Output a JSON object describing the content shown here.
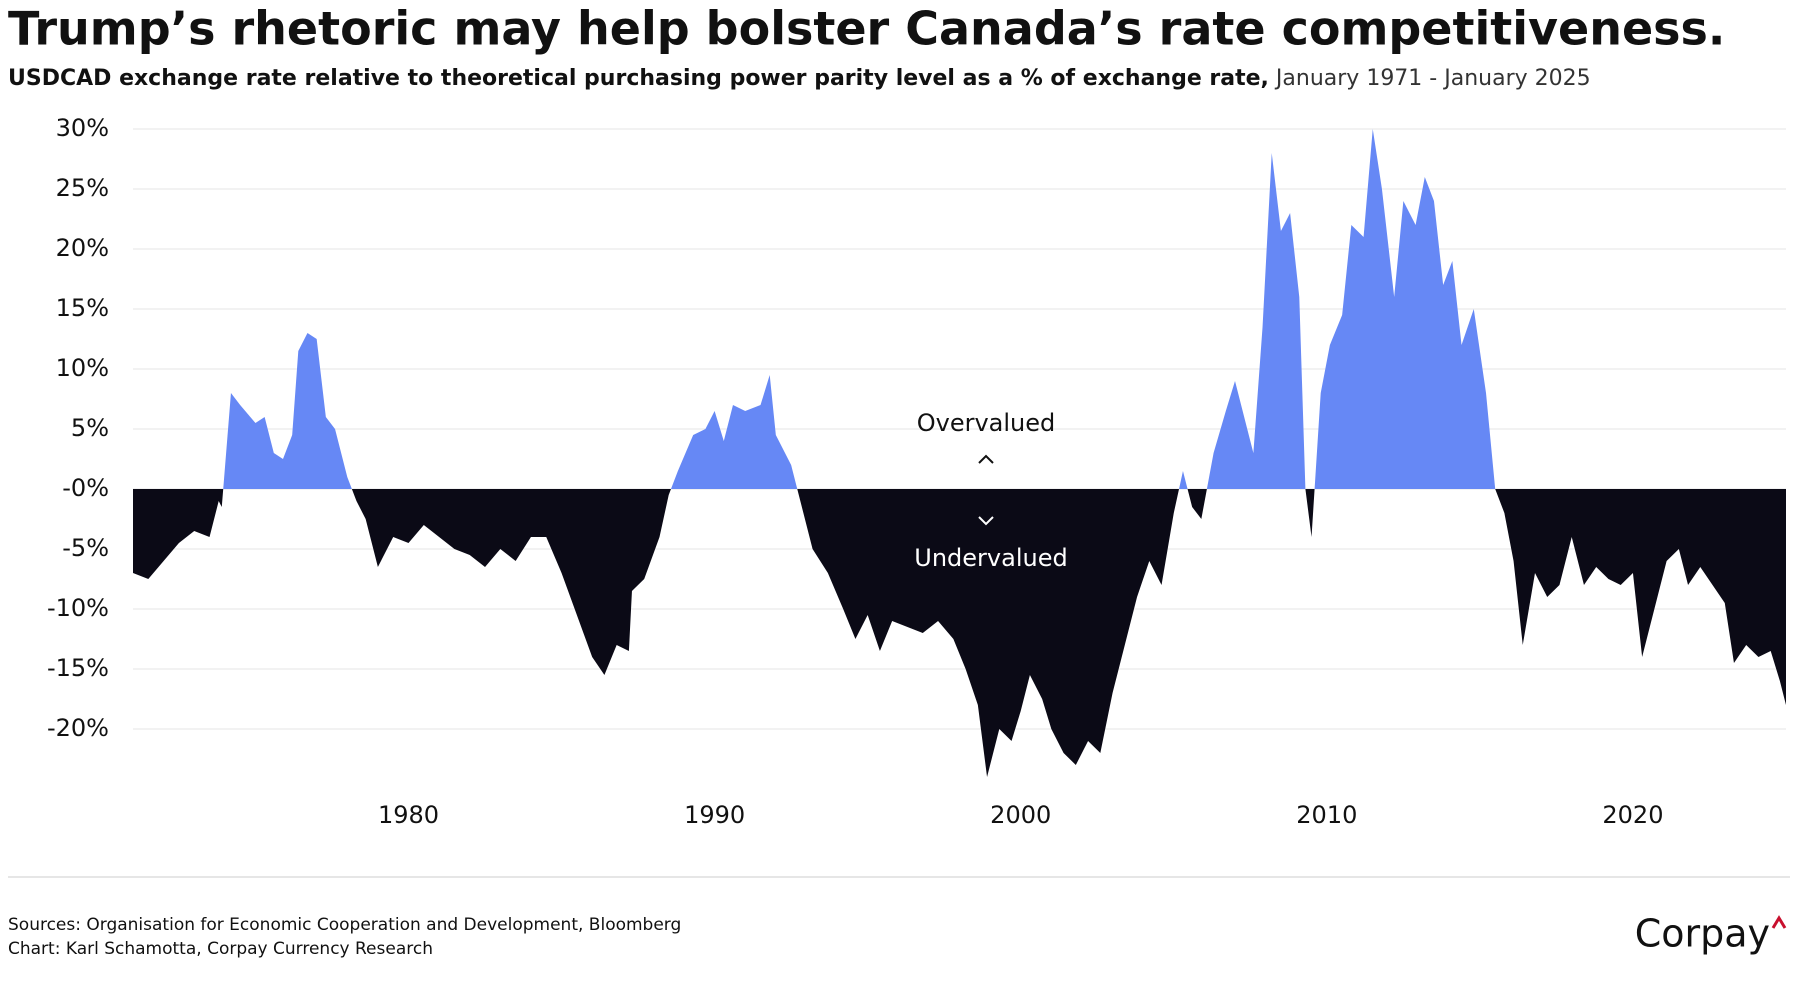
{
  "chart_data": {
    "type": "area",
    "title": "Trump’s rhetoric may help bolster Canada’s rate competitiveness.",
    "subtitle": "USDCAD exchange rate relative to theoretical purchasing power parity level as a % of exchange rate,",
    "subtitle_period": "January 1971 - January 2025",
    "annotations": [
      "Overvalued",
      "Undervalued"
    ],
    "sources": "Sources: Organisation for Economic Cooperation and Development, Bloomberg",
    "credit": "Chart: Karl Schamotta, Corpay Currency Research",
    "logo": "Corpay",
    "positive_color": "#6688f5",
    "negative_color": "#0b0a16",
    "grid": true,
    "xlim": [
      1971,
      2025
    ],
    "xticks": [
      1980,
      1990,
      2000,
      2010,
      2020
    ],
    "ylim": [
      -25,
      31
    ],
    "yticks": [
      {
        "value": 30,
        "label": "30%"
      },
      {
        "value": 25,
        "label": "25%"
      },
      {
        "value": 20,
        "label": "20%"
      },
      {
        "value": 15,
        "label": "15%"
      },
      {
        "value": 10,
        "label": "10%"
      },
      {
        "value": 5,
        "label": "5%"
      },
      {
        "value": 0,
        "label": "-0%"
      },
      {
        "value": -5,
        "label": "-5%"
      },
      {
        "value": -10,
        "label": "-10%"
      },
      {
        "value": -15,
        "label": "-15%"
      },
      {
        "value": -20,
        "label": "-20%"
      }
    ],
    "x": [
      1971.0,
      1971.5,
      1972.0,
      1972.5,
      1973.0,
      1973.5,
      1973.8,
      1973.9,
      1974.2,
      1974.5,
      1975.0,
      1975.3,
      1975.6,
      1975.9,
      1976.2,
      1976.4,
      1976.7,
      1977.0,
      1977.3,
      1977.6,
      1978.0,
      1978.3,
      1978.6,
      1979.0,
      1979.5,
      1980.0,
      1980.5,
      1981.0,
      1981.5,
      1982.0,
      1982.5,
      1983.0,
      1983.5,
      1984.0,
      1984.5,
      1985.0,
      1985.5,
      1986.0,
      1986.4,
      1986.8,
      1987.2,
      1987.3,
      1987.7,
      1988.2,
      1988.5,
      1988.8,
      1989.3,
      1989.7,
      1990.0,
      1990.3,
      1990.6,
      1991.0,
      1991.5,
      1991.8,
      1992.0,
      1992.5,
      1992.8,
      1993.2,
      1993.7,
      1994.2,
      1994.6,
      1995.0,
      1995.4,
      1995.8,
      1996.3,
      1996.8,
      1997.3,
      1997.8,
      1998.2,
      1998.6,
      1998.9,
      1999.3,
      1999.7,
      2000.0,
      2000.3,
      2000.7,
      2001.0,
      2001.4,
      2001.8,
      2002.2,
      2002.6,
      2003.0,
      2003.4,
      2003.8,
      2004.2,
      2004.6,
      2005.0,
      2005.3,
      2005.6,
      2005.9,
      2006.3,
      2006.7,
      2007.0,
      2007.3,
      2007.6,
      2007.9,
      2008.2,
      2008.5,
      2008.8,
      2009.1,
      2009.3,
      2009.5,
      2009.8,
      2010.1,
      2010.5,
      2010.8,
      2011.2,
      2011.5,
      2011.8,
      2012.2,
      2012.5,
      2012.9,
      2013.2,
      2013.5,
      2013.8,
      2014.1,
      2014.4,
      2014.8,
      2015.2,
      2015.5,
      2015.8,
      2016.1,
      2016.4,
      2016.8,
      2017.2,
      2017.6,
      2018.0,
      2018.4,
      2018.8,
      2019.2,
      2019.6,
      2020.0,
      2020.3,
      2020.7,
      2021.1,
      2021.5,
      2021.8,
      2022.2,
      2022.6,
      2023.0,
      2023.3,
      2023.7,
      2024.1,
      2024.5,
      2024.8,
      2025.0
    ],
    "values": [
      -7,
      -7.5,
      -6,
      -4.5,
      -3.5,
      -4,
      -1,
      -1.5,
      8,
      7,
      5.5,
      6,
      3,
      2.5,
      4.5,
      11.5,
      13,
      12.5,
      6,
      5,
      1,
      -1,
      -2.5,
      -6.5,
      -4,
      -4.5,
      -3,
      -4,
      -5,
      -5.5,
      -6.5,
      -5,
      -6,
      -4,
      -4,
      -7,
      -10.5,
      -14,
      -15.5,
      -13,
      -13.5,
      -8.5,
      -7.5,
      -4,
      -0.5,
      1.5,
      4.5,
      5,
      6.5,
      4,
      7,
      6.5,
      7,
      9.5,
      4.5,
      2,
      -1,
      -5,
      -7,
      -10,
      -12.5,
      -10.5,
      -13.5,
      -11,
      -11.5,
      -12,
      -11,
      -12.5,
      -15,
      -18,
      -24,
      -20,
      -21,
      -18.5,
      -15.5,
      -17.5,
      -20,
      -22,
      -23,
      -21,
      -22,
      -17,
      -13,
      -9,
      -6,
      -8,
      -2,
      1.5,
      -1.5,
      -2.5,
      3,
      6.5,
      9,
      6,
      3,
      13.5,
      28,
      21.5,
      23,
      16,
      0,
      -4,
      8,
      12,
      14.5,
      22,
      21,
      30,
      25,
      16,
      24,
      22,
      26,
      24,
      17,
      19,
      12,
      15,
      8,
      0,
      -2,
      -6,
      -13,
      -7,
      -9,
      -8,
      -4,
      -8,
      -6.5,
      -7.5,
      -8,
      -7,
      -14,
      -10,
      -6,
      -5,
      -8,
      -6.5,
      -8,
      -9.5,
      -14.5,
      -13,
      -14,
      -13.5,
      -16,
      -18
    ]
  }
}
